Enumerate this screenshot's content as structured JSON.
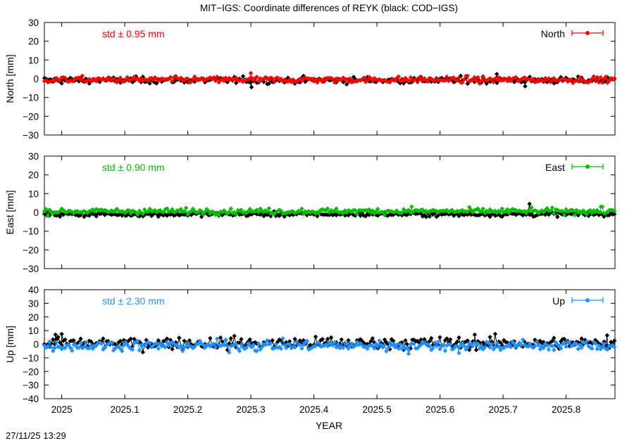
{
  "chart_data": {
    "type": "scatter",
    "title": "MIT−IGS: Coordinate differences of REYK (black: COD−IGS)",
    "xlabel": "YEAR",
    "xlim": [
      2024.9725,
      2025.8775
    ],
    "xticks": [
      2025,
      2025.1,
      2025.2,
      2025.3,
      2025.4,
      2025.5,
      2025.6,
      2025.7,
      2025.8
    ],
    "xtick_labels": [
      "2025",
      "2025.1",
      "2025.2",
      "2025.3",
      "2025.4",
      "2025.5",
      "2025.6",
      "2025.7",
      "2025.8"
    ],
    "grid": false,
    "panels": [
      {
        "name": "north",
        "ylabel": "North [mm]",
        "ylim": [
          -30,
          30
        ],
        "yticks": [
          30,
          20,
          10,
          0,
          -10,
          -20,
          -30
        ],
        "ytick_labels": [
          "30",
          "20",
          "10",
          "0",
          "−10",
          "−20",
          "−30"
        ],
        "std_label": "std ± 0.95 mm",
        "legend": "North",
        "color": "#ff0000",
        "series": [
          {
            "name": "North",
            "color": "#ff0000",
            "mean": -0.5,
            "std": 0.95,
            "outliers": [
              [
                2025.3,
                3.0
              ]
            ]
          },
          {
            "color": "#000000",
            "mean": -0.8,
            "std": 1.0,
            "outliers": [
              [
                2025.301,
                -4.5
              ],
              [
                2025.69,
                2.5
              ],
              [
                2025.735,
                -4.0
              ]
            ]
          }
        ]
      },
      {
        "name": "east",
        "ylabel": "East [mm]",
        "ylim": [
          -30,
          30
        ],
        "yticks": [
          30,
          20,
          10,
          0,
          -10,
          -20,
          -30
        ],
        "ytick_labels": [
          "30",
          "20",
          "10",
          "0",
          "−10",
          "−20",
          "−30"
        ],
        "std_label": "std ± 0.90 mm",
        "legend": "East",
        "color": "#00c000",
        "series": [
          {
            "name": "East",
            "color": "#00c000",
            "mean": 0.6,
            "std": 0.9,
            "outliers": [
              [
                2025.555,
                3.0
              ],
              [
                2025.855,
                3.0
              ]
            ]
          },
          {
            "color": "#000000",
            "mean": -1.0,
            "std": 0.7,
            "outliers": [
              [
                2025.742,
                4.5
              ]
            ]
          }
        ]
      },
      {
        "name": "up",
        "ylabel": "Up [mm]",
        "ylim": [
          -40,
          40
        ],
        "yticks": [
          40,
          30,
          20,
          10,
          0,
          -10,
          -20,
          -30,
          -40
        ],
        "ytick_labels": [
          "40",
          "30",
          "20",
          "10",
          "0",
          "−10",
          "−20",
          "−30",
          "−40"
        ],
        "std_label": "std ± 2.30 mm",
        "legend": "Up",
        "color": "#1e90ff",
        "series": [
          {
            "name": "Up",
            "color": "#1e90ff",
            "mean": -1.0,
            "std": 2.3,
            "outliers": [
              [
                2025.55,
                -7.0
              ],
              [
                2025.63,
                -6.5
              ]
            ]
          },
          {
            "color": "#000000",
            "mean": 0.8,
            "std": 2.6,
            "outliers": [
              [
                2024.99,
                7.0
              ],
              [
                2025.0,
                7.5
              ],
              [
                2025.655,
                7.0
              ],
              [
                2025.865,
                6.5
              ]
            ]
          }
        ]
      }
    ]
  },
  "timestamp": "27/11/25 13:29"
}
